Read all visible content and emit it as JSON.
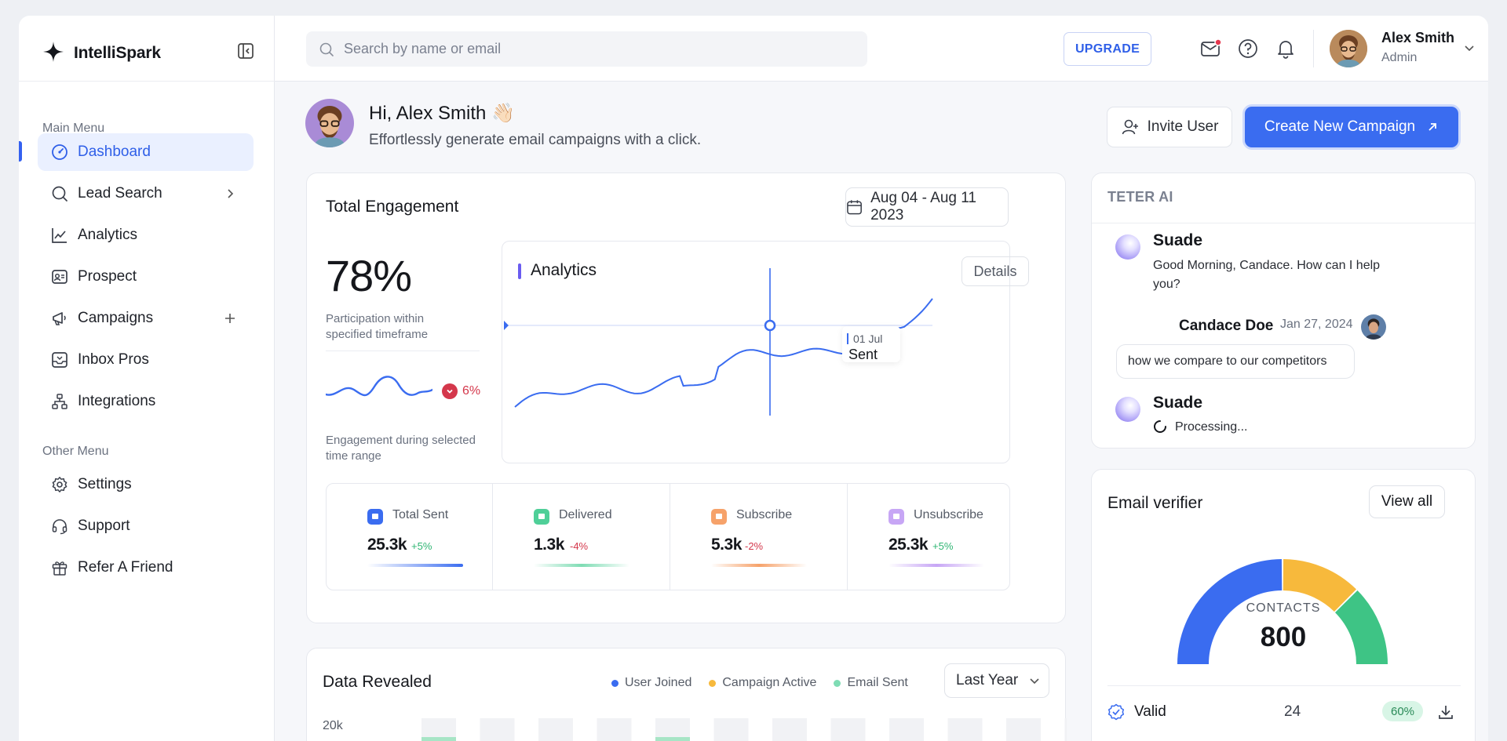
{
  "brand": {
    "name": "IntelliSpark"
  },
  "search": {
    "placeholder": "Search by name or email"
  },
  "topbar": {
    "upgrade_label": "UPGRADE"
  },
  "user": {
    "name": "Alex Smith",
    "role": "Admin"
  },
  "sidebar": {
    "main_title": "Main Menu",
    "main_items": [
      {
        "label": "Dashboard",
        "icon": "gauge-icon",
        "active": true
      },
      {
        "label": "Lead Search",
        "icon": "search-icon",
        "trail": "chevron-right-icon"
      },
      {
        "label": "Analytics",
        "icon": "chart-icon"
      },
      {
        "label": "Prospect",
        "icon": "id-card-icon"
      },
      {
        "label": "Campaigns",
        "icon": "megaphone-icon",
        "trail": "plus-icon"
      },
      {
        "label": "Inbox Pros",
        "icon": "inbox-icon"
      },
      {
        "label": "Integrations",
        "icon": "hierarchy-icon"
      }
    ],
    "other_title": "Other Menu",
    "other_items": [
      {
        "label": "Settings",
        "icon": "gear-icon"
      },
      {
        "label": "Support",
        "icon": "headset-icon"
      },
      {
        "label": "Refer A Friend",
        "icon": "gift-icon"
      }
    ]
  },
  "greeting": {
    "title": "Hi, Alex Smith 👋🏻",
    "subtitle": "Effortlessly generate email campaigns with a click.",
    "invite_label": "Invite User",
    "create_label": "Create New Campaign"
  },
  "engagement": {
    "title": "Total Engagement",
    "date_range": "Aug 04 - Aug 11 2023",
    "percent": "78%",
    "participation_note": "Participation within specified timeframe",
    "delta": "6%",
    "range_note": "Engagement during selected time range",
    "analytics": {
      "title": "Analytics",
      "details_label": "Details",
      "tooltip_date": "01 Jul",
      "tooltip_label": "Sent"
    },
    "stats": [
      {
        "label": "Total Sent",
        "value": "25.3k",
        "delta": "+5%",
        "color": "#3a6cf0",
        "delta_color": "#2fb573"
      },
      {
        "label": "Delivered",
        "value": "1.3k",
        "delta": "-4%",
        "color": "#4fcf98",
        "delta_color": "#d4374b"
      },
      {
        "label": "Subscribe",
        "value": "5.3k",
        "delta": "-2%",
        "color": "#f6a26a",
        "delta_color": "#d4374b"
      },
      {
        "label": "Unsubscribe",
        "value": "25.3k",
        "delta": "+5%",
        "color": "#c7a6f5",
        "delta_color": "#2fb573"
      }
    ]
  },
  "data_revealed": {
    "title": "Data Revealed",
    "legend": [
      {
        "label": "User Joined",
        "color": "#3a6cf0"
      },
      {
        "label": "Campaign Active",
        "color": "#f7b93c"
      },
      {
        "label": "Email Sent",
        "color": "#7fdcb4"
      }
    ],
    "period": "Last Year",
    "y_tick": "20k"
  },
  "ai": {
    "title": "TETER AI",
    "messages": [
      {
        "name": "Suade",
        "text": "Good Morning, Candace. How can I help you?"
      },
      {
        "name": "Candace Doe",
        "time": "Jan 27, 2024",
        "text": "how we compare to our competitors"
      },
      {
        "name": "Suade",
        "text": "Processing..."
      }
    ]
  },
  "verifier": {
    "title": "Email verifier",
    "view_all": "View all",
    "contacts_label": "CONTACTS",
    "contacts_value": "800",
    "row": {
      "label": "Valid",
      "count": "24",
      "percent": "60%"
    },
    "segments": [
      {
        "color": "#3a6cf0",
        "fraction": 0.5
      },
      {
        "color": "#f7b93c",
        "fraction": 0.25
      },
      {
        "color": "#3ec485",
        "fraction": 0.25
      }
    ]
  }
}
